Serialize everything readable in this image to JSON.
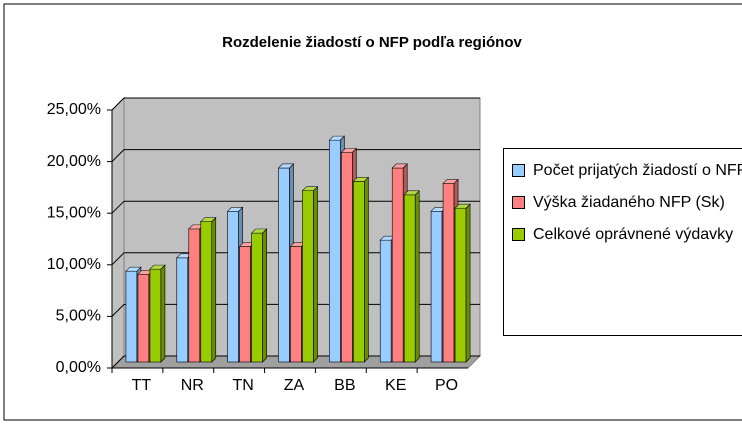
{
  "chart_data": {
    "type": "bar3d",
    "title": "Rozdelenie žiadostí o NFP podľa regiónov",
    "categories": [
      "TT",
      "NR",
      "TN",
      "ZA",
      "BB",
      "KE",
      "PO"
    ],
    "series": [
      {
        "name": "Počet prijatých žiadostí o NFP",
        "color": "#99ccff",
        "values": [
          8.8,
          10.1,
          14.6,
          18.8,
          21.5,
          11.8,
          14.6
        ]
      },
      {
        "name": "Výška žiadaného NFP (Sk)",
        "color": "#ff8080",
        "values": [
          8.5,
          12.9,
          11.2,
          11.2,
          20.3,
          18.8,
          17.3
        ]
      },
      {
        "name": "Celkové oprávnené výdavky",
        "color": "#99cc00",
        "values": [
          9.0,
          13.6,
          12.5,
          16.6,
          17.5,
          16.2,
          14.9
        ]
      }
    ],
    "ylim": [
      0,
      25
    ],
    "yticks": [
      {
        "value": 0,
        "label": "0,00%"
      },
      {
        "value": 5,
        "label": "5,00%"
      },
      {
        "value": 10,
        "label": "10,00%"
      },
      {
        "value": 15,
        "label": "15,00%"
      },
      {
        "value": 20,
        "label": "20,00%"
      },
      {
        "value": 25,
        "label": "25,00%"
      }
    ],
    "grid": true,
    "legend": "right",
    "wall_color": "#c0c0c0"
  }
}
